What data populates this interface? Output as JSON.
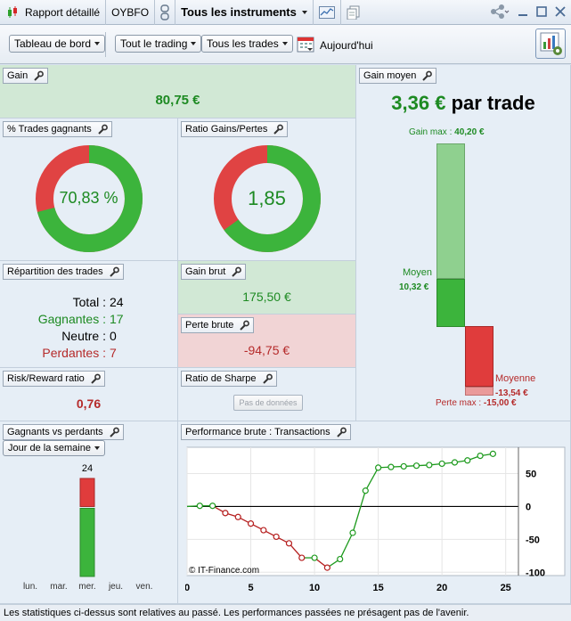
{
  "titlebar": {
    "report_label": "Rapport détaillé",
    "account": "OYBFO",
    "instruments": "Tous les instruments"
  },
  "toolbar": {
    "dashboard": "Tableau de bord",
    "all_trading": "Tout le trading",
    "all_trades": "Tous les trades",
    "period": "Aujourd'hui"
  },
  "panels": {
    "gain": {
      "title": "Gain",
      "value": "80,75 €"
    },
    "win_pct": {
      "title": "% Trades gagnants",
      "value": "70,83 %",
      "fraction": 0.7083
    },
    "ratio": {
      "title": "Ratio Gains/Pertes",
      "value": "1,85",
      "fraction": 0.649
    },
    "avg_gain": {
      "title": "Gain moyen",
      "value_num": "3,36 €",
      "value_unit": "par trade",
      "max_label": "Gain max :",
      "max_value": "40,20 €",
      "avg_label": "Moyen",
      "avg_value": "10,32 €",
      "loss_avg_label": "Moyenne",
      "loss_avg_value": "-13,54 €",
      "loss_max_label": "Perte max :",
      "loss_max_value": "-15,00 €",
      "colors": {
        "gain_light": "#8fd08f",
        "gain_dark": "#3cb43c",
        "loss": "#e03c3c",
        "loss_light": "#ea9a9a"
      }
    },
    "repartition": {
      "title": "Répartition des trades",
      "total_label": "Total :",
      "total": "24",
      "win_label": "Gagnantes :",
      "win": "17",
      "neutral_label": "Neutre :",
      "neutral": "0",
      "loss_label": "Perdantes :",
      "loss": "7"
    },
    "gross_gain": {
      "title": "Gain brut",
      "value": "175,50 €"
    },
    "gross_loss": {
      "title": "Perte brute",
      "value": "-94,75 €"
    },
    "risk_reward": {
      "title": "Risk/Reward ratio",
      "value": "0,76"
    },
    "sharpe": {
      "title": "Ratio de Sharpe",
      "no_data": "Pas de données"
    },
    "winners_losers": {
      "title": "Gagnants vs perdants",
      "selector": "Jour de la semaine",
      "days": [
        "lun.",
        "mar.",
        "mer.",
        "jeu.",
        "ven."
      ],
      "wed_total": "24"
    },
    "performance": {
      "title": "Performance brute : Transactions",
      "credit": "© IT-Finance.com"
    }
  },
  "chart_data": [
    {
      "type": "bar",
      "categories": [
        "lun.",
        "mar.",
        "mer.",
        "jeu.",
        "ven."
      ],
      "series": [
        {
          "name": "Gagnants",
          "values": [
            0,
            0,
            17,
            0,
            0
          ]
        },
        {
          "name": "Perdants",
          "values": [
            0,
            0,
            7,
            0,
            0
          ]
        }
      ],
      "annotations": [
        "24"
      ],
      "stacked": true
    },
    {
      "type": "line",
      "x": [
        0,
        1,
        2,
        3,
        4,
        5,
        6,
        7,
        8,
        9,
        10,
        11,
        12,
        13,
        14,
        15,
        16,
        17,
        18,
        19,
        20,
        21,
        22,
        23,
        24
      ],
      "y": [
        0,
        1,
        1,
        -10,
        -16,
        -26,
        -36,
        -46,
        -56,
        -78,
        -78,
        -93,
        -80,
        -40,
        24,
        59,
        60,
        61,
        62,
        63,
        65,
        67,
        70,
        77,
        80
      ],
      "xlim": [
        0,
        26
      ],
      "ylim": [
        -105,
        90
      ],
      "x_ticks": [
        "0",
        "5",
        "10",
        "15",
        "20",
        "25"
      ],
      "y_ticks": [
        "50",
        "0",
        "-50",
        "-100"
      ],
      "colors": {
        "up": "#1d9a1d",
        "down": "#b51e1e",
        "zero_line": "#000000"
      }
    }
  ],
  "footer": {
    "disclaimer": "Les statistiques ci-dessus sont relatives au passé. Les performances passées ne présagent pas de l'avenir."
  }
}
